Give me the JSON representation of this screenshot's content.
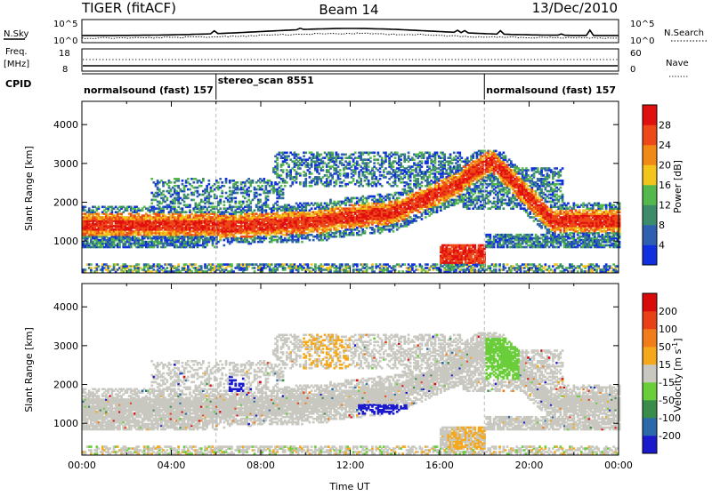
{
  "header": {
    "radar_title": "TIGER (fitACF)",
    "beam": "Beam 14",
    "date": "13/Dec/2010"
  },
  "status_panels": {
    "nsky_label": "N.Sky",
    "nsearch_label": "N.Search",
    "noise_tick_top": "10^5",
    "noise_tick_bottom": "10^0",
    "freq_label_line1": "Freq.",
    "freq_label_line2": "[MHz]",
    "freq_tick_top": "18",
    "freq_tick_bottom": "8",
    "nave_label": "Nave",
    "nave_tick_top": "60",
    "nave_tick_bottom": "0",
    "cpid_label": "CPID",
    "cpid_segments": [
      {
        "label": "normalsound (fast) 157",
        "start_hour": 0,
        "end_hour": 6
      },
      {
        "label": "stereo_scan 8551",
        "start_hour": 6,
        "end_hour": 18
      },
      {
        "label": "normalsound (fast) 157",
        "start_hour": 18,
        "end_hour": 24
      }
    ]
  },
  "chart_data": [
    {
      "type": "heatmap",
      "name": "power",
      "ylabel": "Slant Range [km]",
      "ylim": [
        180,
        4600
      ],
      "yticks": [
        1000,
        2000,
        3000,
        4000
      ],
      "xlim": [
        0,
        24
      ],
      "colorbar": {
        "label": "Power [dB]",
        "ticks": [
          "4",
          "8",
          "12",
          "16",
          "20",
          "24",
          "28"
        ],
        "colors": [
          "#1030e0",
          "#2f60b0",
          "#3c8c6c",
          "#55b84c",
          "#f2c41c",
          "#f08a14",
          "#ee4818",
          "#e01010"
        ]
      }
    },
    {
      "type": "heatmap",
      "name": "velocity",
      "ylabel": "Slant Range [km]",
      "ylim": [
        180,
        4600
      ],
      "yticks": [
        1000,
        2000,
        3000,
        4000
      ],
      "xlim": [
        0,
        24
      ],
      "xticks": [
        "00:00",
        "04:00",
        "08:00",
        "12:00",
        "16:00",
        "20:00",
        "00:00"
      ],
      "xlabel": "Time UT",
      "colorbar": {
        "label": "Velocity [m s^-1]",
        "ticks": [
          "200",
          "100",
          "50",
          "15",
          "-15",
          "-50",
          "-100",
          "-200"
        ],
        "colors": [
          "#1a1acc",
          "#2a6aa8",
          "#3a8c4a",
          "#6acd3a",
          "#c8c8c0",
          "#f5a81c",
          "#f07d1a",
          "#ea4018",
          "#d80a0a"
        ]
      }
    }
  ]
}
